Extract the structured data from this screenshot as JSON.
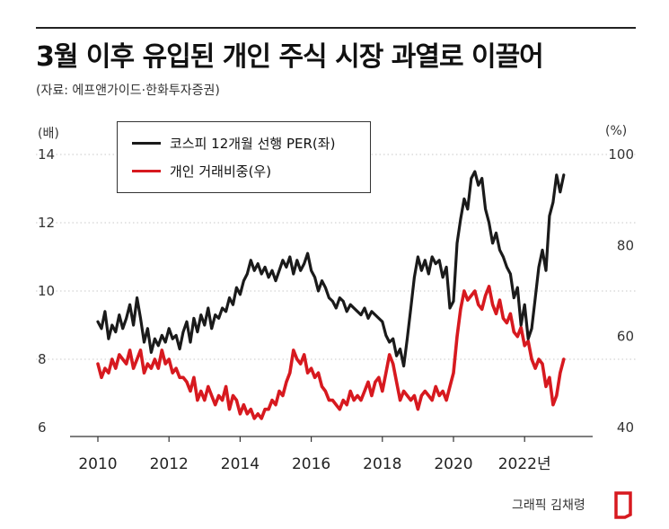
{
  "header": {
    "title": "3월 이후 유입된 개인 주식 시장 과열로 이끌어",
    "source": "(자료: 에프앤가이드·한화투자증권)"
  },
  "axes": {
    "left_unit": "(배)",
    "right_unit": "(%)"
  },
  "legend": {
    "items": [
      "코스피 12개월 선행 PER(좌)",
      "개인 거래비중(우)"
    ]
  },
  "credit": "그래픽 김채령",
  "colors": {
    "per": "#1a1a1a",
    "individual": "#d7191f",
    "grid": "#c8c8c8"
  },
  "chart_data": {
    "type": "line",
    "title": "3월 이후 유입된 개인 주식 시장 과열로 이끌어",
    "x_range": [
      2010,
      2023.5
    ],
    "x_ticks": [
      2010,
      2012,
      2014,
      2016,
      2018,
      2020,
      2022
    ],
    "x_tick_labels": [
      "2010",
      "2012",
      "2014",
      "2016",
      "2018",
      "2020",
      "2022년"
    ],
    "y_left": {
      "label": "(배)",
      "ticks": [
        6,
        8,
        10,
        12,
        14
      ],
      "range": [
        6,
        14
      ]
    },
    "y_right": {
      "label": "(%)",
      "ticks": [
        40,
        60,
        80,
        100
      ],
      "range": [
        40,
        100
      ]
    },
    "grid": "dotted horizontal",
    "legend_position": "top-left",
    "series": [
      {
        "name": "코스피 12개월 선행 PER(좌)",
        "axis": "left",
        "x": [
          2010.0,
          2010.1,
          2010.2,
          2010.3,
          2010.4,
          2010.5,
          2010.6,
          2010.7,
          2010.8,
          2010.9,
          2011.0,
          2011.1,
          2011.2,
          2011.3,
          2011.4,
          2011.5,
          2011.6,
          2011.7,
          2011.8,
          2011.9,
          2012.0,
          2012.1,
          2012.2,
          2012.3,
          2012.4,
          2012.5,
          2012.6,
          2012.7,
          2012.8,
          2012.9,
          2013.0,
          2013.1,
          2013.2,
          2013.3,
          2013.4,
          2013.5,
          2013.6,
          2013.7,
          2013.8,
          2013.9,
          2014.0,
          2014.1,
          2014.2,
          2014.3,
          2014.4,
          2014.5,
          2014.6,
          2014.7,
          2014.8,
          2014.9,
          2015.0,
          2015.1,
          2015.2,
          2015.3,
          2015.4,
          2015.5,
          2015.6,
          2015.7,
          2015.8,
          2015.9,
          2016.0,
          2016.1,
          2016.2,
          2016.3,
          2016.4,
          2016.5,
          2016.6,
          2016.7,
          2016.8,
          2016.9,
          2017.0,
          2017.1,
          2017.2,
          2017.3,
          2017.4,
          2017.5,
          2017.6,
          2017.7,
          2017.8,
          2017.9,
          2018.0,
          2018.1,
          2018.2,
          2018.3,
          2018.4,
          2018.5,
          2018.6,
          2018.7,
          2018.8,
          2018.9,
          2019.0,
          2019.1,
          2019.2,
          2019.3,
          2019.4,
          2019.5,
          2019.6,
          2019.7,
          2019.8,
          2019.9,
          2020.0,
          2020.1,
          2020.2,
          2020.3,
          2020.4,
          2020.5,
          2020.6,
          2020.7,
          2020.8,
          2020.9,
          2021.0,
          2021.1,
          2021.2,
          2021.3,
          2021.4,
          2021.5,
          2021.6,
          2021.7,
          2021.8,
          2021.9,
          2022.0,
          2022.1,
          2022.2,
          2022.3,
          2022.4,
          2022.5,
          2022.6,
          2022.7,
          2022.8,
          2022.9,
          2023.0,
          2023.1
        ],
        "values": [
          9.1,
          8.9,
          9.4,
          8.6,
          9.0,
          8.8,
          9.3,
          8.9,
          9.2,
          9.6,
          9.0,
          9.8,
          9.2,
          8.5,
          8.9,
          8.2,
          8.6,
          8.4,
          8.7,
          8.5,
          8.9,
          8.6,
          8.7,
          8.3,
          8.8,
          9.1,
          8.5,
          9.2,
          8.8,
          9.3,
          9.0,
          9.5,
          8.9,
          9.3,
          9.2,
          9.5,
          9.4,
          9.8,
          9.6,
          10.1,
          9.9,
          10.3,
          10.5,
          10.9,
          10.6,
          10.8,
          10.5,
          10.7,
          10.4,
          10.6,
          10.3,
          10.6,
          10.9,
          10.7,
          11.0,
          10.5,
          10.9,
          10.6,
          10.8,
          11.1,
          10.6,
          10.4,
          10.0,
          10.3,
          10.1,
          9.8,
          9.7,
          9.5,
          9.8,
          9.7,
          9.4,
          9.6,
          9.5,
          9.4,
          9.3,
          9.5,
          9.2,
          9.4,
          9.3,
          9.2,
          9.1,
          8.7,
          8.5,
          8.6,
          8.1,
          8.3,
          7.8,
          8.6,
          9.5,
          10.4,
          11.0,
          10.6,
          10.9,
          10.5,
          11.0,
          10.8,
          10.9,
          10.4,
          10.7,
          9.5,
          9.7,
          11.4,
          12.1,
          12.7,
          12.4,
          13.3,
          13.5,
          13.1,
          13.3,
          12.4,
          12.0,
          11.4,
          11.7,
          11.2,
          11.0,
          10.7,
          10.5,
          9.8,
          10.1,
          9.0,
          9.6,
          8.6,
          8.9,
          9.8,
          10.7,
          11.2,
          10.6,
          12.2,
          12.6,
          13.4,
          12.9,
          13.4
        ]
      },
      {
        "name": "개인 거래비중(우)",
        "axis": "right",
        "x": [
          2010.0,
          2010.1,
          2010.2,
          2010.3,
          2010.4,
          2010.5,
          2010.6,
          2010.7,
          2010.8,
          2010.9,
          2011.0,
          2011.1,
          2011.2,
          2011.3,
          2011.4,
          2011.5,
          2011.6,
          2011.7,
          2011.8,
          2011.9,
          2012.0,
          2012.1,
          2012.2,
          2012.3,
          2012.4,
          2012.5,
          2012.6,
          2012.7,
          2012.8,
          2012.9,
          2013.0,
          2013.1,
          2013.2,
          2013.3,
          2013.4,
          2013.5,
          2013.6,
          2013.7,
          2013.8,
          2013.9,
          2014.0,
          2014.1,
          2014.2,
          2014.3,
          2014.4,
          2014.5,
          2014.6,
          2014.7,
          2014.8,
          2014.9,
          2015.0,
          2015.1,
          2015.2,
          2015.3,
          2015.4,
          2015.5,
          2015.6,
          2015.7,
          2015.8,
          2015.9,
          2016.0,
          2016.1,
          2016.2,
          2016.3,
          2016.4,
          2016.5,
          2016.6,
          2016.7,
          2016.8,
          2016.9,
          2017.0,
          2017.1,
          2017.2,
          2017.3,
          2017.4,
          2017.5,
          2017.6,
          2017.7,
          2017.8,
          2017.9,
          2018.0,
          2018.1,
          2018.2,
          2018.3,
          2018.4,
          2018.5,
          2018.6,
          2018.7,
          2018.8,
          2018.9,
          2019.0,
          2019.1,
          2019.2,
          2019.3,
          2019.4,
          2019.5,
          2019.6,
          2019.7,
          2019.8,
          2019.9,
          2020.0,
          2020.1,
          2020.2,
          2020.3,
          2020.4,
          2020.5,
          2020.6,
          2020.7,
          2020.8,
          2020.9,
          2021.0,
          2021.1,
          2021.2,
          2021.3,
          2021.4,
          2021.5,
          2021.6,
          2021.7,
          2021.8,
          2021.9,
          2022.0,
          2022.1,
          2022.2,
          2022.3,
          2022.4,
          2022.5,
          2022.6,
          2022.7,
          2022.8,
          2022.9,
          2023.0,
          2023.1
        ],
        "values": [
          54,
          51,
          53,
          52,
          55,
          53,
          56,
          55,
          54,
          57,
          53,
          55,
          57,
          52,
          54,
          53,
          55,
          53,
          57,
          54,
          55,
          52,
          53,
          51,
          51,
          50,
          48,
          51,
          46,
          48,
          46,
          49,
          47,
          45,
          47,
          46,
          49,
          44,
          47,
          46,
          43,
          45,
          43,
          44,
          42,
          43,
          42,
          44,
          44,
          46,
          45,
          48,
          47,
          50,
          52,
          57,
          55,
          54,
          56,
          52,
          53,
          51,
          52,
          49,
          48,
          46,
          46,
          45,
          44,
          46,
          45,
          48,
          46,
          47,
          46,
          48,
          50,
          47,
          50,
          51,
          48,
          52,
          56,
          54,
          50,
          46,
          48,
          47,
          46,
          47,
          44,
          47,
          48,
          47,
          46,
          49,
          47,
          48,
          46,
          49,
          52,
          60,
          66,
          70,
          68,
          69,
          70,
          67,
          66,
          69,
          71,
          67,
          65,
          68,
          64,
          63,
          65,
          61,
          60,
          62,
          58,
          59,
          55,
          53,
          55,
          54,
          49,
          51,
          45,
          47,
          52,
          55
        ]
      }
    ]
  }
}
